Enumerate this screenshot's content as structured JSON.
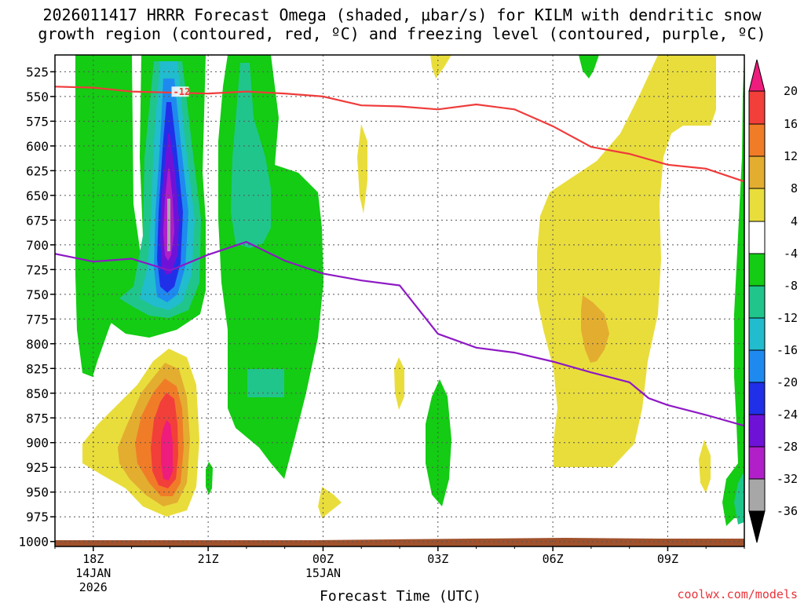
{
  "title": {
    "line1": "2026011417 HRRR Forecast Omega (shaded, μbar/s) for KILM with dendritic snow",
    "line2": "growth region (contoured, red, ºC) and freezing level (contoured, purple, ºC)"
  },
  "credit": "coolwx.com/models",
  "chart_data": {
    "type": "time-height cross section (filled contour)",
    "title": "2026011417 HRRR Forecast Omega (shaded, μbar/s) for KILM with dendritic snow growth region (contoured, red, ºC) and freezing level (contoured, purple, ºC)",
    "xlabel": "Forecast Time (UTC)",
    "ylabel": "",
    "x_range_hours_since_18Z": [
      -1,
      17
    ],
    "y_range_hPa": [
      1005,
      508
    ],
    "y_ticks": [
      525,
      550,
      575,
      600,
      625,
      650,
      675,
      700,
      725,
      750,
      775,
      800,
      825,
      850,
      875,
      900,
      925,
      950,
      975,
      1000
    ],
    "x_ticks": [
      {
        "hour": 0,
        "label": "18Z",
        "sub1": "14JAN",
        "sub2": "2026"
      },
      {
        "hour": 3,
        "label": "21Z",
        "sub1": "",
        "sub2": ""
      },
      {
        "hour": 6,
        "label": "00Z",
        "sub1": "15JAN",
        "sub2": ""
      },
      {
        "hour": 9,
        "label": "03Z",
        "sub1": "",
        "sub2": ""
      },
      {
        "hour": 12,
        "label": "06Z",
        "sub1": "",
        "sub2": ""
      },
      {
        "hour": 15,
        "label": "09Z",
        "sub1": "",
        "sub2": ""
      }
    ],
    "colorbar": {
      "labels": [
        "20",
        "16",
        "12",
        "8",
        "4",
        "-4",
        "-8",
        "-12",
        "-16",
        "-20",
        "-24",
        "-28",
        "-32",
        "-36"
      ],
      "bins": [
        {
          "range": ">20",
          "color": "#ee1c7d"
        },
        {
          "range": "16 to 20",
          "color": "#f23f3a"
        },
        {
          "range": "12 to 16",
          "color": "#f07c28"
        },
        {
          "range": "8 to 12",
          "color": "#e3ad30"
        },
        {
          "range": "4 to 8",
          "color": "#e9dd3c"
        },
        {
          "range": "-4 to 4",
          "color": "#ffffff"
        },
        {
          "range": "-8 to -4",
          "color": "#13cc13"
        },
        {
          "range": "-12 to -8",
          "color": "#20c58c"
        },
        {
          "range": "-16 to -12",
          "color": "#21bccd"
        },
        {
          "range": "-20 to -16",
          "color": "#1e8af0"
        },
        {
          "range": "-24 to -20",
          "color": "#2030e8"
        },
        {
          "range": "-28 to -24",
          "color": "#6f12d8"
        },
        {
          "range": "-32 to -28",
          "color": "#b01fc8"
        },
        {
          "range": "-36 to -32",
          "color": "#a7a7a7"
        },
        {
          "range": "<-36",
          "color": "#000000"
        }
      ]
    },
    "series": [
      {
        "name": "Dendritic growth region top (-12ºC isotherm)",
        "color": "#ef3b3b",
        "label": "-12",
        "points": [
          [
            -1,
            540
          ],
          [
            0,
            541
          ],
          [
            1,
            545
          ],
          [
            2,
            546
          ],
          [
            3,
            547
          ],
          [
            4,
            545
          ],
          [
            5,
            547
          ],
          [
            6,
            550
          ],
          [
            7,
            559
          ],
          [
            8,
            560
          ],
          [
            9,
            563
          ],
          [
            10,
            558
          ],
          [
            11,
            563
          ],
          [
            12,
            580
          ],
          [
            13,
            601
          ],
          [
            14,
            608
          ],
          [
            15,
            619
          ],
          [
            16,
            623
          ],
          [
            17,
            636
          ]
        ]
      },
      {
        "name": "Freezing level (0ºC isotherm)",
        "color": "#8e19c4",
        "points": [
          [
            -1,
            709
          ],
          [
            0,
            717
          ],
          [
            1,
            714
          ],
          [
            2,
            726
          ],
          [
            3,
            710
          ],
          [
            4,
            697
          ],
          [
            5,
            716
          ],
          [
            6,
            729
          ],
          [
            7,
            736
          ],
          [
            8,
            741
          ],
          [
            9,
            790
          ],
          [
            10,
            804
          ],
          [
            11,
            809
          ],
          [
            12,
            818
          ],
          [
            13,
            829
          ],
          [
            14,
            839
          ],
          [
            14.5,
            855
          ],
          [
            15,
            862
          ],
          [
            16,
            872
          ],
          [
            17,
            883
          ]
        ]
      }
    ],
    "shaded_features": [
      {
        "name": "Ascent column ~20Z",
        "peak": "-32 to -36 μbar/s near 650 hPa"
      },
      {
        "name": "Descent core ~20Z",
        "peak": ">20 μbar/s near 880 hPa"
      },
      {
        "name": "Weak descent 06Z-09Z",
        "peak": "8 to 12 μbar/s near 740 hPa"
      }
    ],
    "terrain_base": "surface shaded brown near 1000 hPa"
  }
}
